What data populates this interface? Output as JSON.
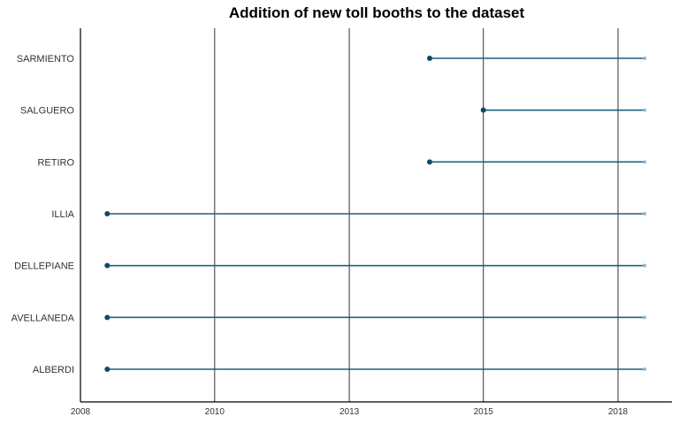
{
  "chart_data": {
    "type": "dumbbell",
    "title": "Addition of new toll booths to the dataset",
    "xlabel": "",
    "ylabel": "",
    "x_axis_kind": "date",
    "xlim": [
      "2008-01-01",
      "2019-01-01"
    ],
    "x_ticks": [
      {
        "value": "2008-01-01",
        "label": "2008"
      },
      {
        "value": "2010-07-01",
        "label": "2010"
      },
      {
        "value": "2013-01-01",
        "label": "2013"
      },
      {
        "value": "2015-07-01",
        "label": "2015"
      },
      {
        "value": "2018-01-01",
        "label": "2018"
      }
    ],
    "grid": {
      "vertical": true,
      "horizontal": false
    },
    "colors": {
      "segment": "#1f5f7f",
      "start_point": "#0e4a66",
      "end_point": "#9bb6cc"
    },
    "categories": [
      "ALBERDI",
      "AVELLANEDA",
      "DELLEPIANE",
      "ILLIA",
      "RETIRO",
      "SALGUERO",
      "SARMIENTO"
    ],
    "segments": [
      {
        "category": "ALBERDI",
        "start": "2008-07-01",
        "end": "2018-07-01"
      },
      {
        "category": "AVELLANEDA",
        "start": "2008-07-01",
        "end": "2018-07-01"
      },
      {
        "category": "DELLEPIANE",
        "start": "2008-07-01",
        "end": "2018-07-01"
      },
      {
        "category": "ILLIA",
        "start": "2008-07-01",
        "end": "2018-07-01"
      },
      {
        "category": "RETIRO",
        "start": "2014-07-01",
        "end": "2018-07-01"
      },
      {
        "category": "SALGUERO",
        "start": "2015-07-01",
        "end": "2018-07-01"
      },
      {
        "category": "SARMIENTO",
        "start": "2014-07-01",
        "end": "2018-07-01"
      }
    ]
  }
}
